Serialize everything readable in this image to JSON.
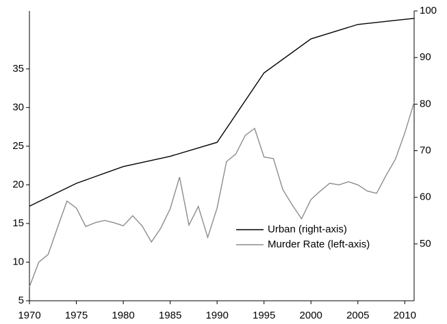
{
  "chart_data": {
    "type": "line",
    "xlim": [
      1970,
      2011
    ],
    "xticks": [
      1970,
      1975,
      1980,
      1985,
      1990,
      1995,
      2000,
      2005,
      2010
    ],
    "ylim": [
      5,
      42.5
    ],
    "yticks": [
      5,
      10,
      15,
      20,
      25,
      30,
      35
    ],
    "y2lim": [
      37.8,
      100
    ],
    "y2ticks": [
      50,
      60,
      70,
      80,
      90,
      100
    ],
    "legend": "lower right",
    "series": [
      {
        "name": "Urban (right-axis)",
        "color": "#000000",
        "axis": "y2",
        "x": [
          1970,
          1975,
          1980,
          1985,
          1990,
          1995,
          2000,
          2005,
          2010,
          2011
        ],
        "values": [
          58.1,
          63.0,
          66.6,
          68.8,
          71.8,
          86.7,
          94.0,
          97.1,
          98.2,
          98.4
        ]
      },
      {
        "name": "Murder Rate (left-axis)",
        "color": "#8c8c8c",
        "x": [
          1970,
          1971,
          1972,
          1973,
          1974,
          1975,
          1976,
          1977,
          1978,
          1979,
          1980,
          1981,
          1982,
          1983,
          1984,
          1985,
          1986,
          1987,
          1988,
          1989,
          1990,
          1991,
          1992,
          1993,
          1994,
          1995,
          1996,
          1997,
          1998,
          1999,
          2000,
          2001,
          2002,
          2003,
          2004,
          2005,
          2006,
          2007,
          2008,
          2009,
          2010,
          2011
        ],
        "values": [
          6.8,
          10.0,
          11.0,
          14.5,
          17.9,
          17.0,
          14.6,
          15.1,
          15.4,
          15.1,
          14.7,
          16.0,
          14.7,
          12.6,
          14.4,
          16.9,
          21.0,
          14.8,
          17.2,
          13.2,
          17.0,
          23.0,
          24.0,
          26.4,
          27.3,
          23.6,
          23.4,
          19.4,
          17.4,
          15.6,
          18.1,
          19.2,
          20.2,
          20.0,
          20.4,
          20.0,
          19.2,
          18.9,
          21.2,
          23.3,
          26.7,
          30.7
        ]
      }
    ]
  }
}
